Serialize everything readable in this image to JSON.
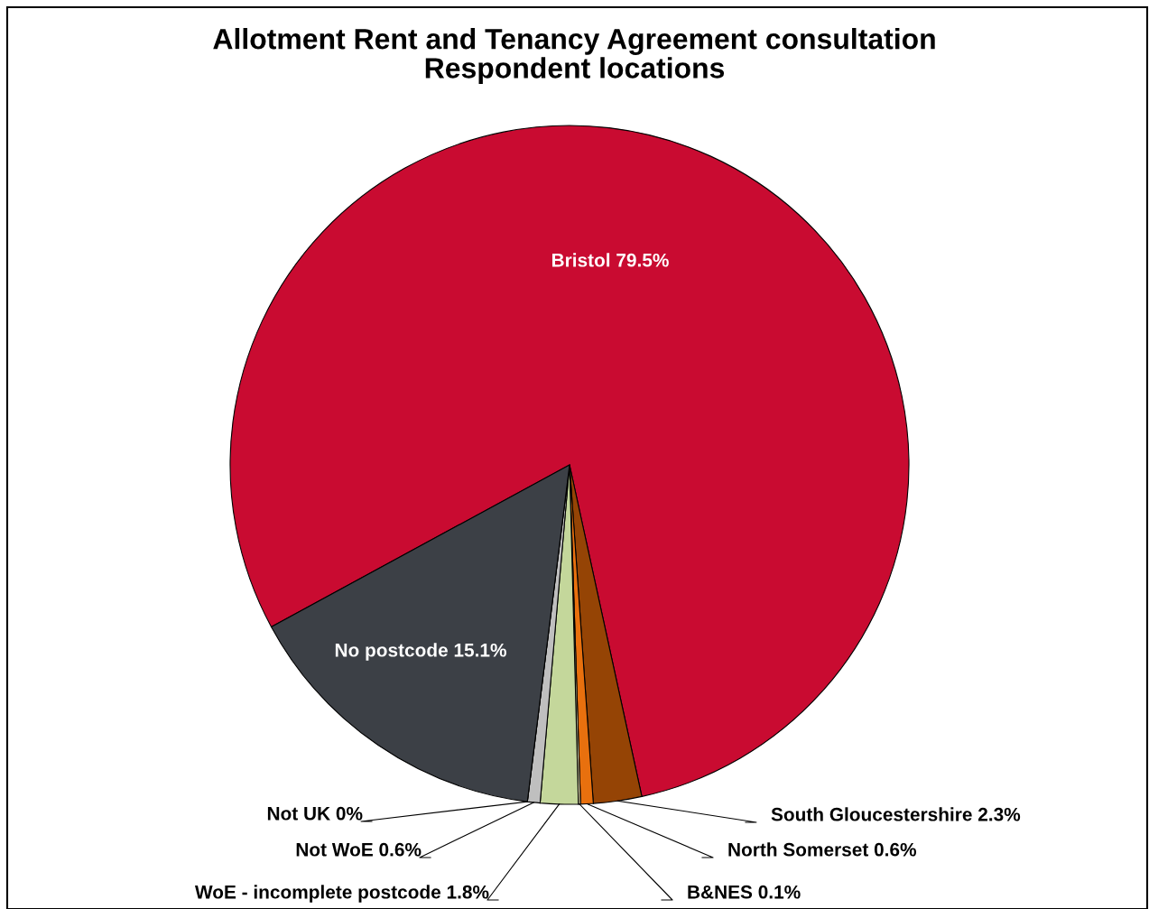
{
  "chart_data": {
    "type": "pie",
    "title": "Allotment Rent and Tenancy Agreement consultation\nRespondent locations",
    "categories": [
      "Bristol",
      "South Gloucestershire",
      "North Somerset",
      "B&NES",
      "WoE - incomplete postcode",
      "Not WoE",
      "Not UK",
      "No postcode"
    ],
    "values": [
      79.5,
      2.3,
      0.6,
      0.1,
      1.8,
      0.6,
      0,
      15.1
    ],
    "value_labels": [
      "79.5%",
      "2.3%",
      "0.6%",
      "0.1%",
      "1.8%",
      "0.6%",
      "0%",
      "15.1%"
    ],
    "colors": [
      "#c90b31",
      "#954405",
      "#e8700e",
      "#fdf2c0",
      "#c4d79b",
      "#bfbfbf",
      "#808080",
      "#3c4046"
    ],
    "legend": false
  }
}
